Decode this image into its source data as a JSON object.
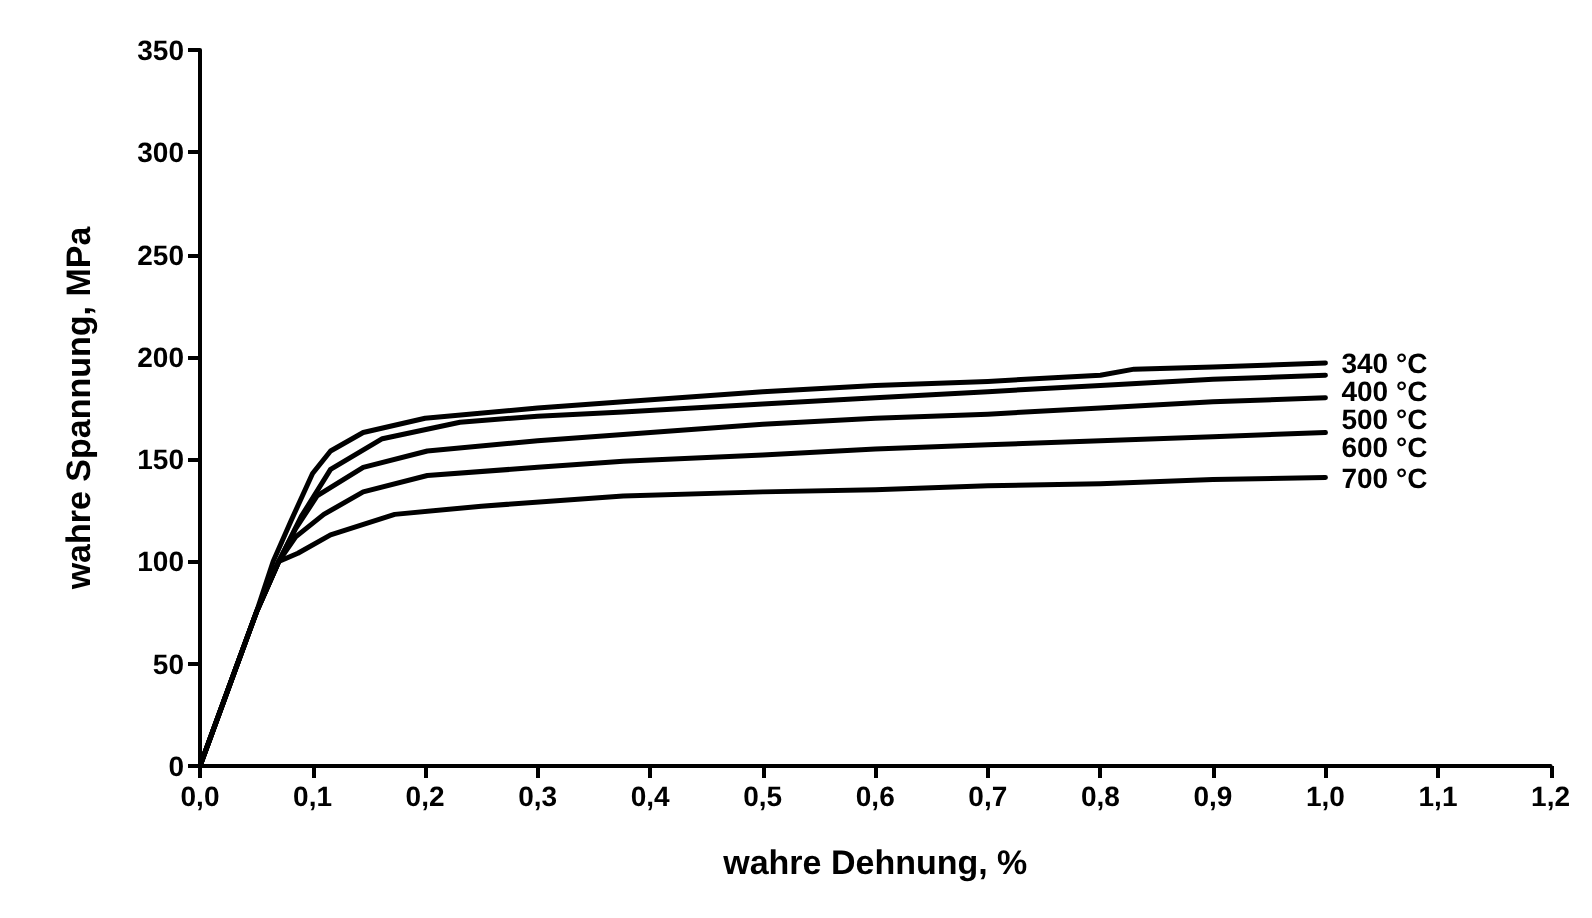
{
  "chart_data": {
    "type": "line",
    "xlabel": "wahre Dehnung, %",
    "ylabel": "wahre Spannung, MPa",
    "xlim": [
      0,
      1.2
    ],
    "ylim": [
      0,
      350
    ],
    "xticks": [
      {
        "value": 0,
        "label": "0,0"
      },
      {
        "value": 0.1,
        "label": "0,1"
      },
      {
        "value": 0.2,
        "label": "0,2"
      },
      {
        "value": 0.3,
        "label": "0,3"
      },
      {
        "value": 0.4,
        "label": "0,4"
      },
      {
        "value": 0.5,
        "label": "0,5"
      },
      {
        "value": 0.6,
        "label": "0,6"
      },
      {
        "value": 0.7,
        "label": "0,7"
      },
      {
        "value": 0.8,
        "label": "0,8"
      },
      {
        "value": 0.9,
        "label": "0,9"
      },
      {
        "value": 1.0,
        "label": "1,0"
      },
      {
        "value": 1.1,
        "label": "1,1"
      },
      {
        "value": 1.2,
        "label": "1,2"
      }
    ],
    "yticks": [
      0,
      50,
      100,
      150,
      200,
      250,
      300,
      350
    ],
    "grid": false,
    "legend": false,
    "marker": "none",
    "line_style": "solid",
    "series": [
      {
        "name": "340 °C",
        "color": "#000000",
        "x": [
          0,
          0.01,
          0.03,
          0.05,
          0.065,
          0.081,
          0.1,
          0.116,
          0.145,
          0.2,
          0.3,
          0.376,
          0.5,
          0.6,
          0.7,
          0.8,
          0.83,
          0.9,
          1.0
        ],
        "values": [
          0,
          15,
          45,
          75,
          100,
          120,
          143,
          154,
          163,
          170,
          175,
          178,
          183,
          186,
          188,
          191,
          194,
          195,
          197
        ]
      },
      {
        "name": "400 °C",
        "color": "#000000",
        "x": [
          0,
          0.01,
          0.03,
          0.05,
          0.07,
          0.09,
          0.116,
          0.162,
          0.231,
          0.3,
          0.376,
          0.5,
          0.6,
          0.7,
          0.8,
          0.9,
          1.0
        ],
        "values": [
          0,
          15,
          45,
          75,
          100,
          122,
          145,
          160,
          168,
          171,
          173,
          177,
          180,
          183,
          186,
          189,
          191
        ]
      },
      {
        "name": "500 °C",
        "color": "#000000",
        "x": [
          0,
          0.01,
          0.03,
          0.05,
          0.07,
          0.085,
          0.104,
          0.145,
          0.202,
          0.3,
          0.376,
          0.5,
          0.6,
          0.7,
          0.8,
          0.9,
          1.0
        ],
        "values": [
          0,
          15,
          45,
          75,
          100,
          116,
          132,
          146,
          154,
          159,
          162,
          167,
          170,
          172,
          175,
          178,
          180
        ]
      },
      {
        "name": "600 °C",
        "color": "#000000",
        "x": [
          0,
          0.01,
          0.03,
          0.05,
          0.07,
          0.085,
          0.11,
          0.145,
          0.202,
          0.3,
          0.376,
          0.5,
          0.6,
          0.7,
          0.8,
          0.9,
          1.0
        ],
        "values": [
          0,
          15,
          45,
          75,
          100,
          112,
          123,
          134,
          142,
          146,
          149,
          152,
          155,
          157,
          159,
          161,
          163
        ]
      },
      {
        "name": "700 °C",
        "color": "#000000",
        "x": [
          0,
          0.01,
          0.03,
          0.05,
          0.07,
          0.087,
          0.116,
          0.173,
          0.25,
          0.376,
          0.5,
          0.6,
          0.7,
          0.8,
          0.9,
          1.0
        ],
        "values": [
          0,
          15,
          45,
          75,
          100,
          104,
          113,
          123,
          127,
          132,
          134,
          135,
          137,
          138,
          140,
          141
        ]
      }
    ]
  }
}
